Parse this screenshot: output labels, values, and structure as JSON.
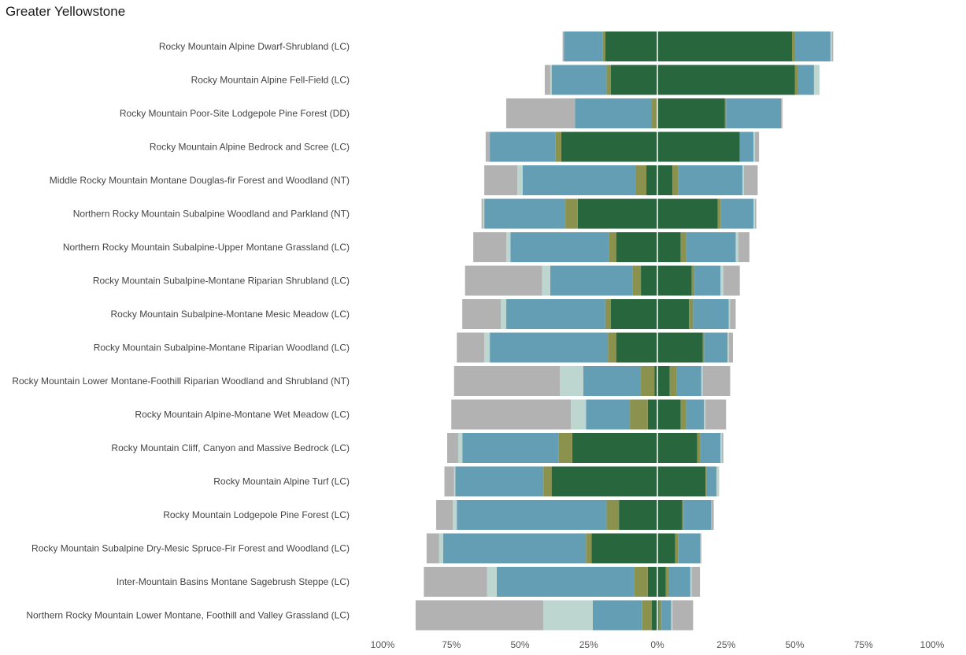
{
  "page": {
    "title": "Greater Yellowstone"
  },
  "chart_data": {
    "type": "bar",
    "title": "Greater Yellowstone",
    "orientation": "horizontal-diverging",
    "x_tick_labels": [
      "100%",
      "75%",
      "50%",
      "25%",
      "0%",
      "25%",
      "50%",
      "75%",
      "100%"
    ],
    "x_ticks": [
      -100,
      -75,
      -50,
      -25,
      0,
      25,
      50,
      75,
      100
    ],
    "xlim": [
      -100,
      100
    ],
    "grid": false,
    "colors": {
      "seg1": "#b2b2b2",
      "seg2": "#bed6d0",
      "seg3": "#649eb5",
      "seg4": "#8a924d",
      "seg5": "#28663d"
    },
    "segment_order_from_center": [
      "seg5",
      "seg4",
      "seg3",
      "seg2",
      "seg1"
    ],
    "categories": [
      "Rocky Mountain Alpine Dwarf-Shrubland (LC)",
      "Rocky Mountain Alpine Fell-Field (LC)",
      "Rocky Mountain Poor-Site Lodgepole Pine Forest (DD)",
      "Rocky Mountain Alpine Bedrock and Scree (LC)",
      "Middle Rocky Mountain Montane Douglas-fir Forest and Woodland (NT)",
      "Northern Rocky Mountain Subalpine Woodland and Parkland (NT)",
      "Northern Rocky Mountain Subalpine-Upper Montane Grassland (LC)",
      "Rocky Mountain Subalpine-Montane Riparian Shrubland (LC)",
      "Rocky Mountain Subalpine-Montane Mesic Meadow (LC)",
      "Rocky Mountain Subalpine-Montane Riparian Woodland (LC)",
      "Rocky Mountain Lower Montane-Foothill Riparian Woodland and Shrubland (NT)",
      "Rocky Mountain Alpine-Montane Wet Meadow (LC)",
      "Rocky Mountain Cliff, Canyon and Massive Bedrock (LC)",
      "Rocky Mountain Alpine Turf (LC)",
      "Rocky Mountain Lodgepole Pine Forest (LC)",
      "Rocky Mountain Subalpine Dry-Mesic Spruce-Fir Forest and Woodland (LC)",
      "Inter-Mountain Basins Montane Sagebrush Steppe (LC)",
      "Northern Rocky Mountain Lower Montane, Foothill and Valley Grassland (LC)"
    ],
    "left_series": [
      {
        "seg5": 19,
        "seg4": 1,
        "seg3": 14,
        "seg2": 0,
        "seg1": 0.5
      },
      {
        "seg5": 17,
        "seg4": 1.5,
        "seg3": 20,
        "seg2": 0.5,
        "seg1": 2
      },
      {
        "seg5": 0,
        "seg4": 2,
        "seg3": 28,
        "seg2": 0,
        "seg1": 25
      },
      {
        "seg5": 35,
        "seg4": 2,
        "seg3": 24,
        "seg2": 0,
        "seg1": 1.5
      },
      {
        "seg5": 4,
        "seg4": 4,
        "seg3": 41,
        "seg2": 2,
        "seg1": 12
      },
      {
        "seg5": 29,
        "seg4": 4.5,
        "seg3": 29.5,
        "seg2": 0.5,
        "seg1": 0.5
      },
      {
        "seg5": 15,
        "seg4": 2.5,
        "seg3": 36,
        "seg2": 1.5,
        "seg1": 12
      },
      {
        "seg5": 6,
        "seg4": 3,
        "seg3": 30,
        "seg2": 3,
        "seg1": 28
      },
      {
        "seg5": 17,
        "seg4": 2,
        "seg3": 36,
        "seg2": 2,
        "seg1": 14
      },
      {
        "seg5": 15,
        "seg4": 3,
        "seg3": 43,
        "seg2": 2,
        "seg1": 10
      },
      {
        "seg5": 1,
        "seg4": 5,
        "seg3": 21,
        "seg2": 8.5,
        "seg1": 38.5
      },
      {
        "seg5": 3.5,
        "seg4": 6.5,
        "seg3": 16,
        "seg2": 5.5,
        "seg1": 43.5
      },
      {
        "seg5": 31,
        "seg4": 5,
        "seg3": 35,
        "seg2": 1.5,
        "seg1": 4
      },
      {
        "seg5": 38.5,
        "seg4": 3,
        "seg3": 32,
        "seg2": 0.5,
        "seg1": 3.5
      },
      {
        "seg5": 14,
        "seg4": 4.5,
        "seg3": 54.5,
        "seg2": 1.5,
        "seg1": 6
      },
      {
        "seg5": 24,
        "seg4": 2,
        "seg3": 52,
        "seg2": 1.5,
        "seg1": 4.5
      },
      {
        "seg5": 3.5,
        "seg4": 5,
        "seg3": 50,
        "seg2": 3.5,
        "seg1": 23
      },
      {
        "seg5": 2,
        "seg4": 3.5,
        "seg3": 18,
        "seg2": 18,
        "seg1": 46.5
      }
    ],
    "right_series": [
      {
        "seg5": 49,
        "seg4": 1,
        "seg3": 13,
        "seg2": 0.5,
        "seg1": 0.5
      },
      {
        "seg5": 50,
        "seg4": 1,
        "seg3": 6,
        "seg2": 2,
        "seg1": 0
      },
      {
        "seg5": 24.5,
        "seg4": 0.5,
        "seg3": 20,
        "seg2": 0,
        "seg1": 0.5
      },
      {
        "seg5": 30,
        "seg4": 0,
        "seg3": 5,
        "seg2": 0.5,
        "seg1": 1.5
      },
      {
        "seg5": 5.5,
        "seg4": 2,
        "seg3": 23.5,
        "seg2": 0.5,
        "seg1": 5
      },
      {
        "seg5": 22,
        "seg4": 1,
        "seg3": 12,
        "seg2": 0.5,
        "seg1": 0.5
      },
      {
        "seg5": 8.5,
        "seg4": 2,
        "seg3": 18,
        "seg2": 1,
        "seg1": 4
      },
      {
        "seg5": 12.5,
        "seg4": 1,
        "seg3": 9.5,
        "seg2": 1,
        "seg1": 6
      },
      {
        "seg5": 11.5,
        "seg4": 1.5,
        "seg3": 13,
        "seg2": 0.5,
        "seg1": 2
      },
      {
        "seg5": 16.5,
        "seg4": 0.5,
        "seg3": 8.5,
        "seg2": 0.5,
        "seg1": 1.5
      },
      {
        "seg5": 4.5,
        "seg4": 2.5,
        "seg3": 9,
        "seg2": 0.5,
        "seg1": 10
      },
      {
        "seg5": 8.5,
        "seg4": 2,
        "seg3": 6.5,
        "seg2": 0.5,
        "seg1": 7.5
      },
      {
        "seg5": 14.5,
        "seg4": 1,
        "seg3": 7.5,
        "seg2": 0.5,
        "seg1": 0.5
      },
      {
        "seg5": 17.5,
        "seg4": 0.5,
        "seg3": 3.5,
        "seg2": 1,
        "seg1": 0
      },
      {
        "seg5": 9,
        "seg4": 0.5,
        "seg3": 10,
        "seg2": 0,
        "seg1": 1
      },
      {
        "seg5": 6.5,
        "seg4": 1,
        "seg3": 8,
        "seg2": 0,
        "seg1": 0.5
      },
      {
        "seg5": 3,
        "seg4": 1,
        "seg3": 8,
        "seg2": 0.5,
        "seg1": 3
      },
      {
        "seg5": 0.5,
        "seg4": 1,
        "seg3": 3.5,
        "seg2": 0.5,
        "seg1": 7.5
      }
    ]
  }
}
